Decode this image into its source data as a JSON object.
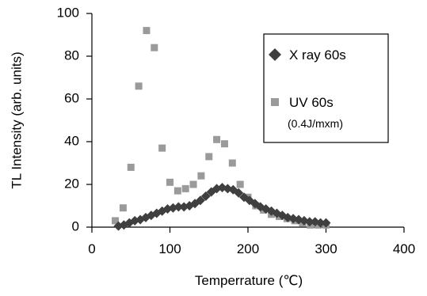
{
  "chart_data": {
    "type": "scatter",
    "xlabel": "Temperrature (℃)",
    "ylabel": "TL Intensity (arb. units)",
    "xlim": [
      0,
      400
    ],
    "ylim": [
      0,
      100
    ],
    "xticks": [
      0,
      100,
      200,
      300,
      400
    ],
    "yticks": [
      0,
      20,
      40,
      60,
      80,
      100
    ],
    "grid": false,
    "legend_position": "top-right",
    "series": [
      {
        "name": "X ray 60s",
        "marker": "diamond",
        "color": "#3f3f3f",
        "points": [
          [
            34,
            0.5
          ],
          [
            41,
            1
          ],
          [
            48,
            2
          ],
          [
            55,
            3
          ],
          [
            62,
            3.5
          ],
          [
            69,
            4.5
          ],
          [
            76,
            5.5
          ],
          [
            83,
            6.5
          ],
          [
            90,
            7.5
          ],
          [
            97,
            8.5
          ],
          [
            104,
            9
          ],
          [
            111,
            9.5
          ],
          [
            118,
            9.5
          ],
          [
            125,
            10
          ],
          [
            132,
            11
          ],
          [
            139,
            12.5
          ],
          [
            146,
            14.5
          ],
          [
            153,
            16.5
          ],
          [
            160,
            18
          ],
          [
            167,
            18.5
          ],
          [
            174,
            18
          ],
          [
            181,
            17.5
          ],
          [
            188,
            16
          ],
          [
            195,
            14
          ],
          [
            202,
            12.5
          ],
          [
            209,
            11
          ],
          [
            216,
            9.5
          ],
          [
            223,
            8.5
          ],
          [
            230,
            7.5
          ],
          [
            237,
            6.5
          ],
          [
            244,
            5.5
          ],
          [
            251,
            4.5
          ],
          [
            258,
            4
          ],
          [
            265,
            3.5
          ],
          [
            272,
            3
          ],
          [
            279,
            2.5
          ],
          [
            286,
            2.5
          ],
          [
            293,
            2
          ],
          [
            300,
            2
          ]
        ]
      },
      {
        "name": "UV 60s",
        "note": "(0.4J/mxm)",
        "marker": "square",
        "color": "#9a9a9a",
        "points": [
          [
            30,
            3
          ],
          [
            40,
            9
          ],
          [
            50,
            28
          ],
          [
            60,
            66
          ],
          [
            70,
            92
          ],
          [
            80,
            84
          ],
          [
            90,
            37
          ],
          [
            100,
            21
          ],
          [
            110,
            17
          ],
          [
            120,
            18
          ],
          [
            130,
            20
          ],
          [
            140,
            24
          ],
          [
            150,
            33
          ],
          [
            160,
            41
          ],
          [
            170,
            39
          ],
          [
            180,
            30
          ],
          [
            190,
            20
          ],
          [
            200,
            14
          ],
          [
            210,
            10
          ],
          [
            220,
            8
          ],
          [
            230,
            6
          ],
          [
            240,
            5
          ],
          [
            250,
            4
          ],
          [
            260,
            3
          ],
          [
            270,
            2
          ],
          [
            280,
            1
          ],
          [
            290,
            1
          ],
          [
            300,
            1
          ]
        ]
      }
    ]
  }
}
